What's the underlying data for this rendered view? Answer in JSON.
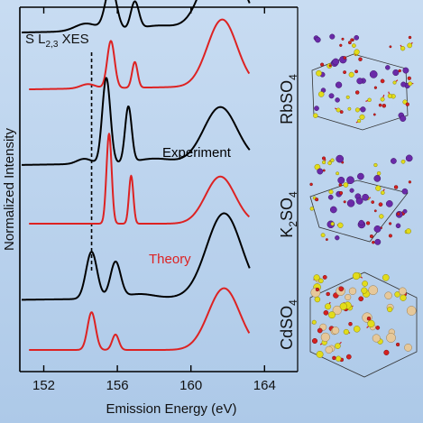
{
  "chart_data": {
    "type": "line",
    "title": "",
    "panel_label": "S L",
    "panel_label_sub": "2,3",
    "panel_label_suffix": " XES",
    "xlabel": "Emission Energy (eV)",
    "ylabel": "Normalized Intensity",
    "xlim": [
      150.7,
      165.8
    ],
    "xticks": [
      152,
      156,
      160,
      164
    ],
    "xtick_labels": [
      "152",
      "156",
      "160",
      "164"
    ],
    "yticks": "none",
    "grid": false,
    "dashed_line_x": 154.6,
    "legend": {
      "experiment": "Experiment",
      "theory": "Theory",
      "placement": "inline"
    },
    "colors": {
      "experiment": "#000000",
      "theory": "#dd2222",
      "dashed": "#000000"
    },
    "compounds": [
      {
        "name": "RbSO",
        "subscript": "4",
        "offset": 355,
        "experiment": {
          "baseline": 0.2,
          "slope": 0.06,
          "peaks": [
            [
              155.65,
              0.52,
              0.3
            ],
            [
              156.95,
              0.32,
              0.22
            ],
            [
              154.3,
              0.09,
              0.6
            ],
            [
              158.2,
              0.05,
              0.9
            ],
            [
              161.7,
              1.0,
              0.95
            ]
          ]
        },
        "theory": {
          "baseline": 0.04,
          "slope": 0.05,
          "peaks": [
            [
              155.65,
              0.55,
              0.2
            ],
            [
              156.95,
              0.3,
              0.15
            ],
            [
              154.4,
              0.05,
              0.4
            ],
            [
              161.7,
              0.78,
              0.8
            ]
          ]
        }
      },
      {
        "name": "K",
        "subscript": "2",
        "name_suffix": "SO",
        "subscript2": "4",
        "offset": 210,
        "experiment": {
          "baseline": 0.18,
          "slope": 0.05,
          "peaks": [
            [
              155.4,
              1.0,
              0.22
            ],
            [
              156.6,
              0.65,
              0.18
            ],
            [
              154.2,
              0.06,
              0.4
            ],
            [
              158.0,
              0.05,
              0.9
            ],
            [
              161.6,
              0.64,
              0.9
            ]
          ]
        },
        "theory": {
          "baseline": 0.0,
          "slope": 0.0,
          "peaks": [
            [
              155.55,
              1.05,
              0.14
            ],
            [
              156.75,
              0.56,
              0.12
            ],
            [
              161.6,
              0.55,
              0.8
            ]
          ]
        }
      },
      {
        "name": "CdSO",
        "subscript": "4",
        "offset": 70,
        "experiment": {
          "baseline": 0.08,
          "slope": 0.04,
          "peaks": [
            [
              154.6,
              0.55,
              0.3
            ],
            [
              155.9,
              0.42,
              0.28
            ],
            [
              157.2,
              0.05,
              0.8
            ],
            [
              161.8,
              0.98,
              0.95
            ]
          ]
        },
        "theory": {
          "baseline": 0.0,
          "slope": 0.0,
          "peaks": [
            [
              154.6,
              0.44,
              0.22
            ],
            [
              155.9,
              0.18,
              0.18
            ],
            [
              161.8,
              0.72,
              0.85
            ]
          ]
        }
      }
    ]
  }
}
